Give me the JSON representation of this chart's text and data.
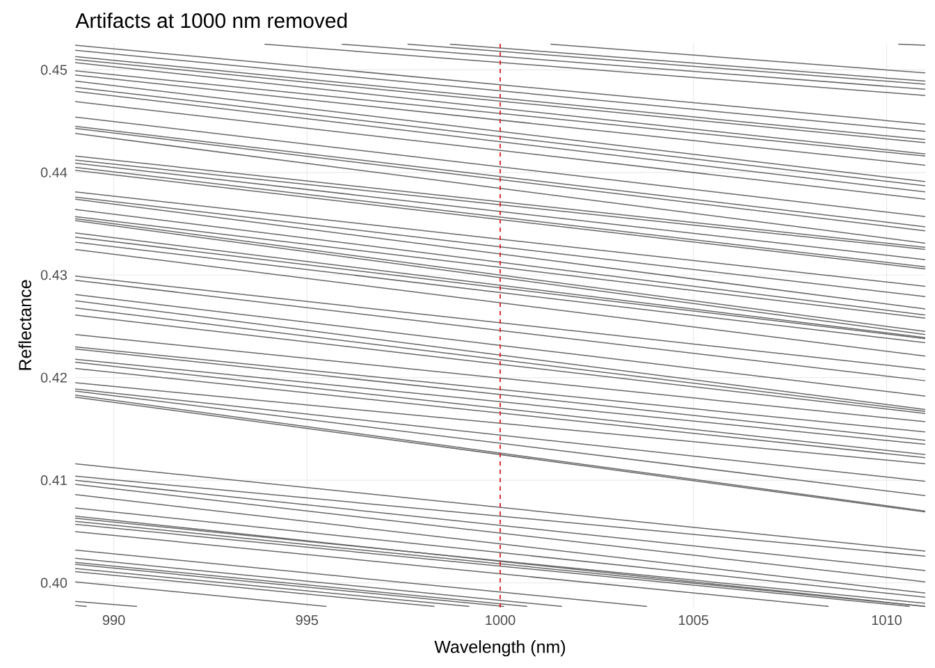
{
  "chart_data": {
    "type": "line",
    "title": "Artifacts at 1000 nm removed",
    "xlabel": "Wavelength (nm)",
    "ylabel": "Reflectance",
    "color": "#666666",
    "grid": true,
    "xlim": [
      989,
      1011
    ],
    "ylim": [
      0.3976,
      0.4526
    ],
    "xticks": [
      990,
      995,
      1000,
      1005,
      1010
    ],
    "yticks": [
      {
        "value": 0.4,
        "label": "0.40"
      },
      0.41,
      0.42,
      0.43,
      0.44,
      0.45
    ],
    "ref_lines": [
      {
        "axis": "x",
        "value": 1000,
        "color": "#e41a1c",
        "line_style": "dashed"
      }
    ],
    "series": [
      {
        "x": [
          1010.3,
          1011
        ],
        "values": [
          0.4525,
          0.4524
        ]
      },
      {
        "x": [
          1001.3,
          1011
        ],
        "values": [
          0.4525,
          0.4497
        ]
      },
      {
        "x": [
          998.7,
          1011
        ],
        "values": [
          0.4525,
          0.4489
        ]
      },
      {
        "x": [
          997.6,
          1011
        ],
        "values": [
          0.4525,
          0.4486
        ]
      },
      {
        "x": [
          995.9,
          1011
        ],
        "values": [
          0.4525,
          0.4481
        ]
      },
      {
        "x": [
          993.9,
          1011
        ],
        "values": [
          0.4525,
          0.4475
        ]
      },
      {
        "x": [
          989,
          1011
        ],
        "values": [
          0.4524,
          0.4447
        ]
      },
      {
        "x": [
          989,
          1011
        ],
        "values": [
          0.4519,
          0.444
        ]
      },
      {
        "x": [
          989,
          1011
        ],
        "values": [
          0.4513,
          0.4432
        ]
      },
      {
        "x": [
          989,
          1011
        ],
        "values": [
          0.451,
          0.4429
        ]
      },
      {
        "x": [
          989,
          1011
        ],
        "values": [
          0.4507,
          0.4418
        ]
      },
      {
        "x": [
          989,
          1011
        ],
        "values": [
          0.4499,
          0.4416
        ]
      },
      {
        "x": [
          989,
          1011
        ],
        "values": [
          0.4495,
          0.4407
        ]
      },
      {
        "x": [
          989,
          1011
        ],
        "values": [
          0.4489,
          0.4391
        ]
      },
      {
        "x": [
          989,
          1011
        ],
        "values": [
          0.4483,
          0.4387
        ]
      },
      {
        "x": [
          989,
          1011
        ],
        "values": [
          0.4479,
          0.4381
        ]
      },
      {
        "x": [
          989,
          1011
        ],
        "values": [
          0.4469,
          0.4374
        ]
      },
      {
        "x": [
          989,
          1011
        ],
        "values": [
          0.4454,
          0.4357
        ]
      },
      {
        "x": [
          989,
          1011
        ],
        "values": [
          0.4445,
          0.4347
        ]
      },
      {
        "x": [
          989,
          1011
        ],
        "values": [
          0.4443,
          0.4343
        ]
      },
      {
        "x": [
          989,
          1011
        ],
        "values": [
          0.4438,
          0.4331
        ]
      },
      {
        "x": [
          989,
          1011
        ],
        "values": [
          0.4416,
          0.4327
        ]
      },
      {
        "x": [
          989,
          1011
        ],
        "values": [
          0.4412,
          0.4325
        ]
      },
      {
        "x": [
          989,
          1011
        ],
        "values": [
          0.4409,
          0.4315
        ]
      },
      {
        "x": [
          989,
          1011
        ],
        "values": [
          0.4405,
          0.4308
        ]
      },
      {
        "x": [
          989,
          1011
        ],
        "values": [
          0.4402,
          0.4306
        ]
      },
      {
        "x": [
          989,
          1011
        ],
        "values": [
          0.4381,
          0.4289
        ]
      },
      {
        "x": [
          989,
          1011
        ],
        "values": [
          0.4376,
          0.4279
        ]
      },
      {
        "x": [
          989,
          1011
        ],
        "values": [
          0.4374,
          0.4267
        ]
      },
      {
        "x": [
          989,
          1011
        ],
        "values": [
          0.4364,
          0.4261
        ]
      },
      {
        "x": [
          989,
          1011
        ],
        "values": [
          0.4357,
          0.4258
        ]
      },
      {
        "x": [
          989,
          1011
        ],
        "values": [
          0.4355,
          0.4245
        ]
      },
      {
        "x": [
          989,
          1011
        ],
        "values": [
          0.4353,
          0.4242
        ]
      },
      {
        "x": [
          989,
          1011
        ],
        "values": [
          0.4341,
          0.4239
        ]
      },
      {
        "x": [
          989,
          1011
        ],
        "values": [
          0.4337,
          0.4238
        ]
      },
      {
        "x": [
          989,
          1011
        ],
        "values": [
          0.4332,
          0.4234
        ]
      },
      {
        "x": [
          989,
          1011
        ],
        "values": [
          0.4325,
          0.4221
        ]
      },
      {
        "x": [
          989,
          1011
        ],
        "values": [
          0.4299,
          0.4208
        ]
      },
      {
        "x": [
          989,
          1011
        ],
        "values": [
          0.4295,
          0.4197
        ]
      },
      {
        "x": [
          989,
          1011
        ],
        "values": [
          0.4281,
          0.4182
        ]
      },
      {
        "x": [
          989,
          1011
        ],
        "values": [
          0.4275,
          0.4169
        ]
      },
      {
        "x": [
          989,
          1011
        ],
        "values": [
          0.4268,
          0.4167
        ]
      },
      {
        "x": [
          989,
          1011
        ],
        "values": [
          0.4261,
          0.4165
        ]
      },
      {
        "x": [
          989,
          1011
        ],
        "values": [
          0.4242,
          0.4157
        ]
      },
      {
        "x": [
          989,
          1011
        ],
        "values": [
          0.423,
          0.4147
        ]
      },
      {
        "x": [
          989,
          1011
        ],
        "values": [
          0.4228,
          0.4139
        ]
      },
      {
        "x": [
          989,
          1011
        ],
        "values": [
          0.4218,
          0.4135
        ]
      },
      {
        "x": [
          989,
          1011
        ],
        "values": [
          0.4215,
          0.4125
        ]
      },
      {
        "x": [
          989,
          1011
        ],
        "values": [
          0.4209,
          0.4122
        ]
      },
      {
        "x": [
          989,
          1011
        ],
        "values": [
          0.4195,
          0.4116
        ]
      },
      {
        "x": [
          989,
          1011
        ],
        "values": [
          0.4189,
          0.4099
        ]
      },
      {
        "x": [
          989,
          1011
        ],
        "values": [
          0.4187,
          0.4085
        ]
      },
      {
        "x": [
          989,
          1011
        ],
        "values": [
          0.4183,
          0.407
        ]
      },
      {
        "x": [
          989,
          1011
        ],
        "values": [
          0.4181,
          0.4069
        ]
      },
      {
        "x": [
          989,
          1011
        ],
        "values": [
          0.4116,
          0.4031
        ]
      },
      {
        "x": [
          989,
          1011
        ],
        "values": [
          0.4104,
          0.4026
        ]
      },
      {
        "x": [
          989,
          1011
        ],
        "values": [
          0.41,
          0.4012
        ]
      },
      {
        "x": [
          989,
          1011
        ],
        "values": [
          0.4096,
          0.4001
        ]
      },
      {
        "x": [
          989,
          1011
        ],
        "values": [
          0.4086,
          0.399
        ]
      },
      {
        "x": [
          989,
          1011
        ],
        "values": [
          0.4073,
          0.3986
        ]
      },
      {
        "x": [
          989,
          1011
        ],
        "values": [
          0.4065,
          0.3977
        ]
      },
      {
        "x": [
          989,
          1011
        ],
        "values": [
          0.4063,
          0.398
        ]
      },
      {
        "x": [
          989,
          1011
        ],
        "values": [
          0.406,
          0.3977
        ]
      },
      {
        "x": [
          989,
          1010.6
        ],
        "values": [
          0.4057,
          0.3977
        ]
      },
      {
        "x": [
          989,
          1008.5
        ],
        "values": [
          0.405,
          0.3977
        ]
      },
      {
        "x": [
          989,
          1003.8
        ],
        "values": [
          0.4032,
          0.3977
        ]
      },
      {
        "x": [
          989,
          1001.6
        ],
        "values": [
          0.4024,
          0.3977
        ]
      },
      {
        "x": [
          989,
          1000.7
        ],
        "values": [
          0.402,
          0.3977
        ]
      },
      {
        "x": [
          989,
          1000.1
        ],
        "values": [
          0.4018,
          0.3977
        ]
      },
      {
        "x": [
          989,
          999.2
        ],
        "values": [
          0.4014,
          0.3977
        ]
      },
      {
        "x": [
          989,
          998.3
        ],
        "values": [
          0.4011,
          0.3977
        ]
      },
      {
        "x": [
          989,
          995.5
        ],
        "values": [
          0.4001,
          0.3977
        ]
      },
      {
        "x": [
          989,
          990.6
        ],
        "values": [
          0.3982,
          0.3977
        ]
      },
      {
        "x": [
          989,
          989.3
        ],
        "values": [
          0.3978,
          0.3977
        ]
      }
    ]
  }
}
